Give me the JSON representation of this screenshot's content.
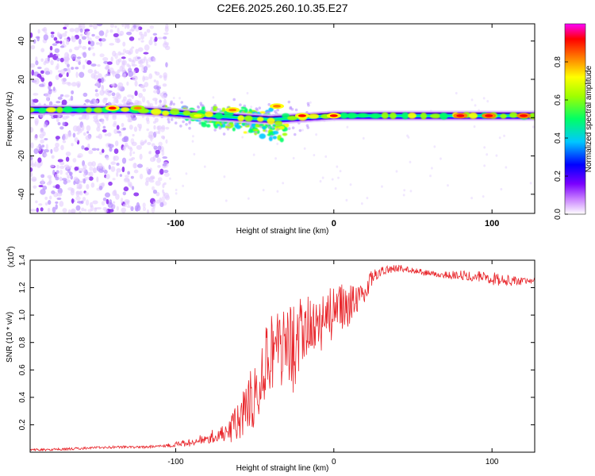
{
  "figure": {
    "title": "C2E6.2025.260.10.35.E27"
  },
  "chart_data": [
    {
      "type": "heatmap",
      "title": "C2E6.2025.260.10.35.E27",
      "xlabel": "Height of straight line (km)",
      "ylabel": "Frequency (Hz)",
      "xlim": [
        -192,
        127
      ],
      "ylim": [
        -50,
        49
      ],
      "x_ticks": [
        -100,
        0,
        100
      ],
      "x_tick_labels": [
        "-100",
        "0",
        "100"
      ],
      "y_ticks": [
        -40,
        -20,
        0,
        20,
        40
      ],
      "y_tick_labels": [
        "-40",
        "-20",
        "0",
        "20",
        "40"
      ],
      "colorbar": {
        "label": "Normalized spectral amplitude",
        "range": [
          0,
          1
        ],
        "ticks": [
          0,
          0.2,
          0.4,
          0.6,
          0.8
        ],
        "tick_labels": [
          "0.0",
          "0.2",
          "0.4",
          "0.6",
          "0.8"
        ],
        "colormap": [
          "#ffffff",
          "#8000ff",
          "#0000ff",
          "#00ffff",
          "#00ff00",
          "#ffff00",
          "#ff8000",
          "#ff0000",
          "#ff00ff"
        ]
      },
      "ridge": [
        [
          -192,
          4
        ],
        [
          -160,
          4
        ],
        [
          -130,
          4
        ],
        [
          -110,
          3
        ],
        [
          -95,
          2
        ],
        [
          -80,
          1
        ],
        [
          -60,
          0
        ],
        [
          -40,
          -1
        ],
        [
          -20,
          0
        ],
        [
          0,
          1
        ],
        [
          40,
          1
        ],
        [
          80,
          1
        ],
        [
          127,
          1
        ]
      ],
      "ridge_color": "#1a1a6e",
      "scatter_bands": [
        {
          "x_range": [
            -110,
            -30
          ],
          "y_range": [
            -20,
            12
          ],
          "color": "#00c8ff"
        }
      ],
      "hot_spots": [
        {
          "x": -140,
          "y": 5,
          "level": 0.85
        },
        {
          "x": -124,
          "y": 5,
          "level": 0.75
        },
        {
          "x": -86,
          "y": 1,
          "level": 0.7
        },
        {
          "x": -64,
          "y": 4,
          "level": 0.8
        },
        {
          "x": -36,
          "y": 6,
          "level": 0.8
        },
        {
          "x": -20,
          "y": 1,
          "level": 0.85
        },
        {
          "x": 0,
          "y": 1,
          "level": 0.85
        },
        {
          "x": 80,
          "y": 1,
          "level": 0.9
        },
        {
          "x": 98,
          "y": 1,
          "level": 0.9
        },
        {
          "x": 120,
          "y": 1,
          "level": 0.9
        }
      ],
      "noise_region": {
        "x_range": [
          -192,
          -105
        ],
        "y_range": [
          -50,
          49
        ],
        "color": "#9a5cff"
      }
    },
    {
      "type": "line",
      "xlabel": "Height of straight line (km)",
      "ylabel": "SNR (10 * v/v)",
      "y_multiplier_label": "(x10",
      "y_multiplier_exponent": "4",
      "y_multiplier_close": ")",
      "xlim": [
        -192,
        127
      ],
      "ylim": [
        0,
        1.4
      ],
      "x_ticks": [
        -100,
        0,
        100
      ],
      "x_tick_labels": [
        "-100",
        "0",
        "100"
      ],
      "y_ticks": [
        0.2,
        0.4,
        0.6,
        0.8,
        1.0,
        1.2,
        1.4
      ],
      "y_tick_labels": [
        "0.2",
        "0.4",
        "0.6",
        "0.8",
        "1.0",
        "1.2",
        "1.4"
      ],
      "series": [
        {
          "name": "SNR",
          "color": "#e8252a",
          "envelope": [
            [
              -192,
              0.02
            ],
            [
              -180,
              0.02
            ],
            [
              -160,
              0.03
            ],
            [
              -140,
              0.04
            ],
            [
              -120,
              0.04
            ],
            [
              -100,
              0.06
            ],
            [
              -90,
              0.08
            ],
            [
              -80,
              0.12
            ],
            [
              -70,
              0.15
            ],
            [
              -60,
              0.25
            ],
            [
              -50,
              0.5
            ],
            [
              -45,
              0.7
            ],
            [
              -40,
              0.8
            ],
            [
              -35,
              0.9
            ],
            [
              -30,
              0.8
            ],
            [
              -25,
              0.85
            ],
            [
              -20,
              0.9
            ],
            [
              -15,
              0.95
            ],
            [
              -10,
              1.0
            ],
            [
              -5,
              1.05
            ],
            [
              0,
              1.05
            ],
            [
              5,
              1.1
            ],
            [
              10,
              1.1
            ],
            [
              15,
              1.15
            ],
            [
              20,
              1.2
            ],
            [
              25,
              1.3
            ],
            [
              30,
              1.33
            ],
            [
              40,
              1.35
            ],
            [
              50,
              1.33
            ],
            [
              60,
              1.31
            ],
            [
              70,
              1.3
            ],
            [
              80,
              1.3
            ],
            [
              90,
              1.29
            ],
            [
              95,
              1.31
            ],
            [
              100,
              1.28
            ],
            [
              110,
              1.26
            ],
            [
              120,
              1.25
            ],
            [
              127,
              1.26
            ]
          ],
          "noise": [
            [
              -192,
              0.008
            ],
            [
              -110,
              0.01
            ],
            [
              -90,
              0.03
            ],
            [
              -70,
              0.06
            ],
            [
              -60,
              0.15
            ],
            [
              -50,
              0.25
            ],
            [
              -40,
              0.3
            ],
            [
              -30,
              0.35
            ],
            [
              -20,
              0.3
            ],
            [
              -10,
              0.25
            ],
            [
              0,
              0.2
            ],
            [
              10,
              0.15
            ],
            [
              20,
              0.08
            ],
            [
              30,
              0.03
            ],
            [
              60,
              0.02
            ],
            [
              90,
              0.04
            ],
            [
              100,
              0.05
            ],
            [
              127,
              0.02
            ]
          ]
        }
      ]
    }
  ]
}
